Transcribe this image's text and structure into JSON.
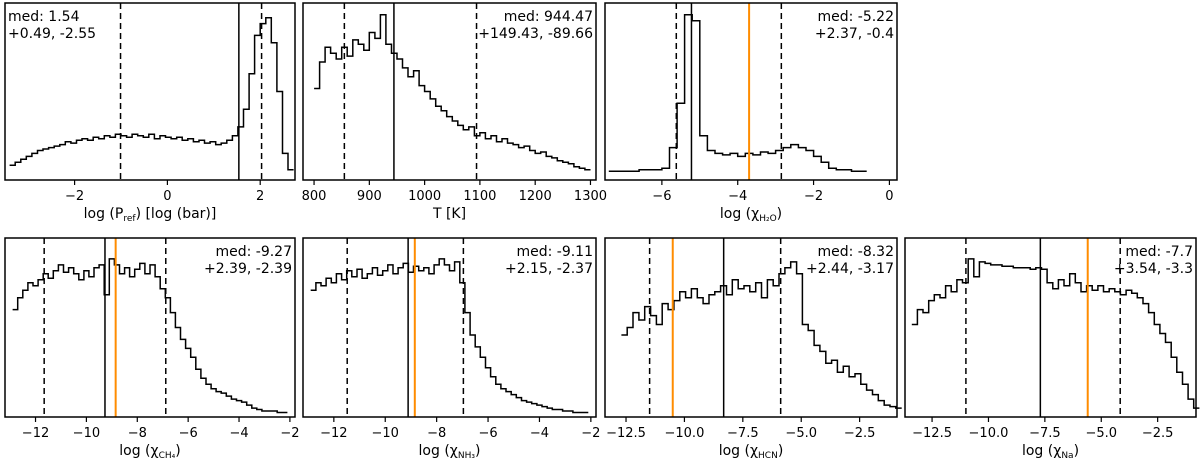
{
  "colors": {
    "line": "#000000",
    "truth": "#ff8c00",
    "background": "#ffffff"
  },
  "chart_data": [
    {
      "type": "histogram",
      "xlabel": "log (P",
      "xlabel_sub": "ref",
      "xlabel_suffix": ") [log (bar)]",
      "xlim": [
        -3.5,
        2.75
      ],
      "ylim": [
        0,
        1.2
      ],
      "xticks": [
        -2,
        0,
        2
      ],
      "xtick_labels": [
        "−2",
        "0",
        "2"
      ],
      "annotation": {
        "line1": "med: 1.54",
        "line2": "+0.49, -2.55",
        "position": "top-left"
      },
      "median": 1.54,
      "lower": -1.01,
      "upper": 2.03,
      "truth": null,
      "bins_start": -3.4,
      "bin_width": 0.12,
      "values": [
        0.1,
        0.12,
        0.14,
        0.16,
        0.18,
        0.2,
        0.21,
        0.22,
        0.23,
        0.24,
        0.26,
        0.25,
        0.27,
        0.28,
        0.27,
        0.29,
        0.28,
        0.3,
        0.29,
        0.31,
        0.3,
        0.29,
        0.31,
        0.3,
        0.29,
        0.31,
        0.28,
        0.3,
        0.29,
        0.28,
        0.29,
        0.27,
        0.28,
        0.26,
        0.27,
        0.25,
        0.26,
        0.24,
        0.25,
        0.27,
        0.3,
        0.36,
        0.48,
        0.72,
        0.98,
        1.06,
        1.1,
        0.93,
        0.6,
        0.18,
        0.07
      ]
    },
    {
      "type": "histogram",
      "xlabel": "T [K]",
      "xlabel_sub": "",
      "xlabel_suffix": "",
      "xlim": [
        780,
        1310
      ],
      "ylim": [
        0,
        1.2
      ],
      "xticks": [
        800,
        900,
        1000,
        1100,
        1200,
        1300
      ],
      "xtick_labels": [
        "800",
        "900",
        "1000",
        "1100",
        "1200",
        "1300"
      ],
      "annotation": {
        "line1": "med: 944.47",
        "line2": "+149.43, -89.66",
        "position": "top-right"
      },
      "median": 944.47,
      "lower": 854.81,
      "upper": 1093.9,
      "truth": null,
      "bins_start": 800,
      "bin_width": 10,
      "values": [
        0.62,
        0.8,
        0.9,
        0.86,
        0.82,
        0.9,
        0.84,
        0.95,
        0.92,
        0.88,
        1.0,
        0.96,
        1.12,
        0.92,
        0.86,
        0.82,
        0.76,
        0.7,
        0.74,
        0.64,
        0.6,
        0.55,
        0.5,
        0.47,
        0.43,
        0.4,
        0.37,
        0.34,
        0.36,
        0.3,
        0.32,
        0.28,
        0.3,
        0.26,
        0.28,
        0.25,
        0.24,
        0.22,
        0.23,
        0.2,
        0.18,
        0.19,
        0.16,
        0.15,
        0.13,
        0.12,
        0.11,
        0.09,
        0.08,
        0.07
      ]
    },
    {
      "type": "histogram",
      "xlabel": "log (χ",
      "xlabel_sub": "H₂O",
      "xlabel_suffix": ")",
      "xlim": [
        -7.5,
        0.2
      ],
      "ylim": [
        0,
        1.2
      ],
      "xticks": [
        -6,
        -4,
        -2,
        0
      ],
      "xtick_labels": [
        "−6",
        "−4",
        "−2",
        "0"
      ],
      "annotation": {
        "line1": "med: -5.22",
        "line2": "+2.37, -0.4",
        "position": "top-right"
      },
      "median": -5.22,
      "lower": -5.62,
      "upper": -2.85,
      "truth": -3.7,
      "bins_start": -7.4,
      "bin_width": 0.2,
      "values": [
        0.06,
        0.06,
        0.06,
        0.06,
        0.07,
        0.07,
        0.07,
        0.08,
        0.22,
        0.52,
        1.12,
        1.08,
        0.3,
        0.2,
        0.18,
        0.17,
        0.18,
        0.16,
        0.18,
        0.17,
        0.19,
        0.18,
        0.2,
        0.22,
        0.24,
        0.22,
        0.2,
        0.16,
        0.12,
        0.08,
        0.07,
        0.07,
        0.06,
        0.06
      ]
    },
    {
      "type": "histogram",
      "xlabel": "log (χ",
      "xlabel_sub": "CH₄",
      "xlabel_suffix": ")",
      "xlim": [
        -13.2,
        -1.8
      ],
      "ylim": [
        0,
        1.2
      ],
      "xticks": [
        -12,
        -10,
        -8,
        -6,
        -4,
        -2
      ],
      "xtick_labels": [
        "−12",
        "−10",
        "−8",
        "−6",
        "−4",
        "−2"
      ],
      "annotation": {
        "line1": "med: -9.27",
        "line2": "+2.39, -2.39",
        "position": "top-right"
      },
      "median": -9.27,
      "lower": -11.66,
      "upper": -6.88,
      "truth": -8.85,
      "bins_start": -12.9,
      "bin_width": 0.2,
      "values": [
        0.72,
        0.8,
        0.85,
        0.9,
        0.88,
        0.92,
        0.96,
        0.93,
        0.98,
        1.02,
        0.97,
        1.0,
        0.96,
        0.92,
        0.98,
        0.94,
        1.0,
        1.02,
        0.82,
        1.06,
        1.02,
        0.96,
        1.0,
        0.94,
        0.99,
        1.03,
        0.96,
        1.02,
        0.94,
        0.86,
        0.8,
        0.7,
        0.6,
        0.52,
        0.46,
        0.4,
        0.32,
        0.26,
        0.22,
        0.19,
        0.17,
        0.16,
        0.14,
        0.12,
        0.11,
        0.1,
        0.08,
        0.06,
        0.05,
        0.04,
        0.04,
        0.04,
        0.03,
        0.03
      ]
    },
    {
      "type": "histogram",
      "xlabel": "log (χ",
      "xlabel_sub": "NH₃",
      "xlabel_suffix": ")",
      "xlim": [
        -13.2,
        -1.8
      ],
      "ylim": [
        0,
        1.2
      ],
      "xticks": [
        -12,
        -10,
        -8,
        -6,
        -4,
        -2
      ],
      "xtick_labels": [
        "−12",
        "−10",
        "−8",
        "−6",
        "−4",
        "−2"
      ],
      "annotation": {
        "line1": "med: -9.11",
        "line2": "+2.15, -2.37",
        "position": "top-right"
      },
      "median": -9.11,
      "lower": -11.48,
      "upper": -6.96,
      "truth": -8.85,
      "bins_start": -12.9,
      "bin_width": 0.2,
      "values": [
        0.85,
        0.9,
        0.88,
        0.93,
        0.9,
        0.96,
        0.92,
        0.98,
        0.94,
        0.99,
        0.93,
        0.96,
        1.0,
        0.95,
        0.98,
        1.02,
        0.96,
        1.0,
        1.03,
        0.97,
        1.01,
        0.98,
        1.0,
        0.96,
        1.02,
        1.06,
        1.02,
        0.98,
        1.04,
        0.9,
        0.7,
        0.55,
        0.47,
        0.4,
        0.33,
        0.27,
        0.22,
        0.19,
        0.17,
        0.15,
        0.13,
        0.11,
        0.1,
        0.09,
        0.08,
        0.07,
        0.06,
        0.05,
        0.05,
        0.04,
        0.04,
        0.03,
        0.03,
        0.03
      ]
    },
    {
      "type": "histogram",
      "xlabel": "log (χ",
      "xlabel_sub": "HCN",
      "xlabel_suffix": ")",
      "xlim": [
        -13.4,
        -0.9
      ],
      "ylim": [
        0,
        1.2
      ],
      "xticks": [
        -12.5,
        -10,
        -7.5,
        -5,
        -2.5
      ],
      "xtick_labels": [
        "−12.5",
        "−10.0",
        "−7.5",
        "−5.0",
        "−2.5"
      ],
      "annotation": {
        "line1": "med: -8.32",
        "line2": "+2.44, -3.17",
        "position": "top-right"
      },
      "median": -8.32,
      "lower": -11.49,
      "upper": -5.88,
      "truth": -10.5,
      "bins_start": -12.7,
      "bin_width": 0.25,
      "values": [
        0.55,
        0.6,
        0.7,
        0.65,
        0.74,
        0.68,
        0.62,
        0.76,
        0.72,
        0.78,
        0.84,
        0.8,
        0.86,
        0.8,
        0.76,
        0.82,
        0.84,
        0.88,
        0.82,
        0.92,
        0.86,
        0.88,
        0.84,
        0.9,
        0.8,
        0.92,
        0.88,
        0.96,
        1.0,
        1.04,
        0.96,
        0.62,
        0.58,
        0.48,
        0.44,
        0.36,
        0.38,
        0.3,
        0.34,
        0.27,
        0.29,
        0.22,
        0.18,
        0.15,
        0.11,
        0.08,
        0.07,
        0.06
      ]
    },
    {
      "type": "histogram",
      "xlabel": "log (χ",
      "xlabel_sub": "Na",
      "xlabel_suffix": ")",
      "xlim": [
        -13.7,
        -0.8
      ],
      "ylim": [
        0,
        1.2
      ],
      "xticks": [
        -12.5,
        -10,
        -7.5,
        -5,
        -2.5
      ],
      "xtick_labels": [
        "−12.5",
        "−10.0",
        "−7.5",
        "−5.0",
        "−2.5"
      ],
      "annotation": {
        "line1": "med: -7.7",
        "line2": "+3.54, -3.3",
        "position": "top-right"
      },
      "median": -7.7,
      "lower": -11.0,
      "upper": -4.16,
      "truth": -5.6,
      "bins_start": -13.4,
      "bin_width": 0.25,
      "values": [
        0.62,
        0.72,
        0.7,
        0.78,
        0.82,
        0.8,
        0.88,
        0.84,
        0.92,
        0.9,
        1.06,
        0.94,
        1.04,
        1.03,
        1.02,
        1.02,
        1.01,
        1.01,
        1.0,
        1.0,
        1.0,
        0.99,
        1.0,
        0.99,
        0.9,
        0.86,
        0.92,
        0.88,
        0.96,
        0.9,
        0.84,
        0.88,
        0.85,
        0.88,
        0.84,
        0.86,
        0.84,
        0.82,
        0.85,
        0.83,
        0.8,
        0.76,
        0.7,
        0.62,
        0.56,
        0.5,
        0.4,
        0.3,
        0.22,
        0.12,
        0.06
      ]
    }
  ]
}
